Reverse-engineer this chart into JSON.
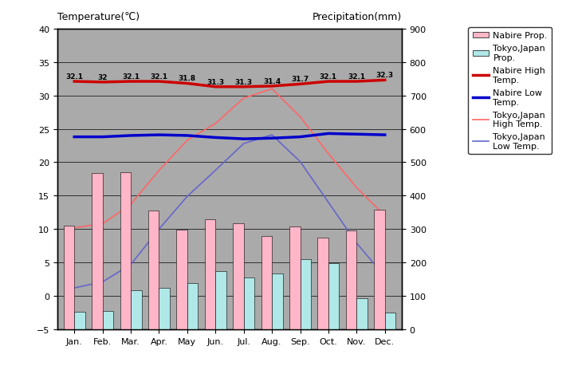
{
  "months": [
    "Jan.",
    "Feb.",
    "Mar.",
    "Apr.",
    "May",
    "Jun.",
    "Jul.",
    "Aug.",
    "Sep.",
    "Oct.",
    "Nov.",
    "Dec."
  ],
  "nabire_precip": [
    310,
    468,
    470,
    355,
    298,
    330,
    318,
    280,
    308,
    275,
    295,
    358
  ],
  "tokyo_precip": [
    52,
    56,
    117,
    125,
    138,
    175,
    154,
    168,
    210,
    197,
    93,
    51
  ],
  "nabire_high": [
    32.1,
    32.0,
    32.1,
    32.1,
    31.8,
    31.3,
    31.3,
    31.4,
    31.7,
    32.1,
    32.1,
    32.3
  ],
  "nabire_low": [
    23.8,
    23.8,
    24.0,
    24.1,
    24.0,
    23.7,
    23.5,
    23.6,
    23.8,
    24.3,
    24.2,
    24.1
  ],
  "tokyo_high": [
    10.2,
    10.8,
    13.7,
    18.8,
    23.3,
    25.8,
    29.6,
    31.0,
    26.8,
    21.3,
    16.2,
    12.0
  ],
  "tokyo_low": [
    1.2,
    2.1,
    4.7,
    10.0,
    14.9,
    18.8,
    22.8,
    24.1,
    20.1,
    14.0,
    7.9,
    2.9
  ],
  "nabire_high_labels": [
    "32.1",
    "32",
    "32.1",
    "32.1",
    "31.8",
    "31.3",
    "31.3",
    "31.4",
    "31.7",
    "32.1",
    "32.1",
    "32.3"
  ],
  "title_left": "Temperature(℃)",
  "title_right": "Precipitation(mm)",
  "ylim_left": [
    -5,
    40
  ],
  "ylim_right": [
    0,
    900
  ],
  "nabire_precip_color": "#FFB6C8",
  "tokyo_precip_color": "#B0E8E8",
  "nabire_high_color": "#CC0000",
  "nabire_low_color": "#0000CC",
  "tokyo_high_color": "#FF6666",
  "tokyo_low_color": "#6666CC",
  "background_color": "#AAAAAA",
  "legend_nabire_prop": "Nabire Prop.",
  "legend_tokyo_prop": "Tokyo,Japan\nProp.",
  "legend_nabire_high": "Nabire High\nTemp.",
  "legend_nabire_low": "Nabire Low\nTemp.",
  "legend_tokyo_high": "Tokyo,Japan\nHigh Temp.",
  "legend_tokyo_low": "Tokyo,Japan\nLow Temp.",
  "left_axis_ticks": [
    -5,
    0,
    5,
    10,
    15,
    20,
    25,
    30,
    35,
    40
  ],
  "right_axis_ticks": [
    0,
    100,
    200,
    300,
    400,
    500,
    600,
    700,
    800,
    900
  ]
}
